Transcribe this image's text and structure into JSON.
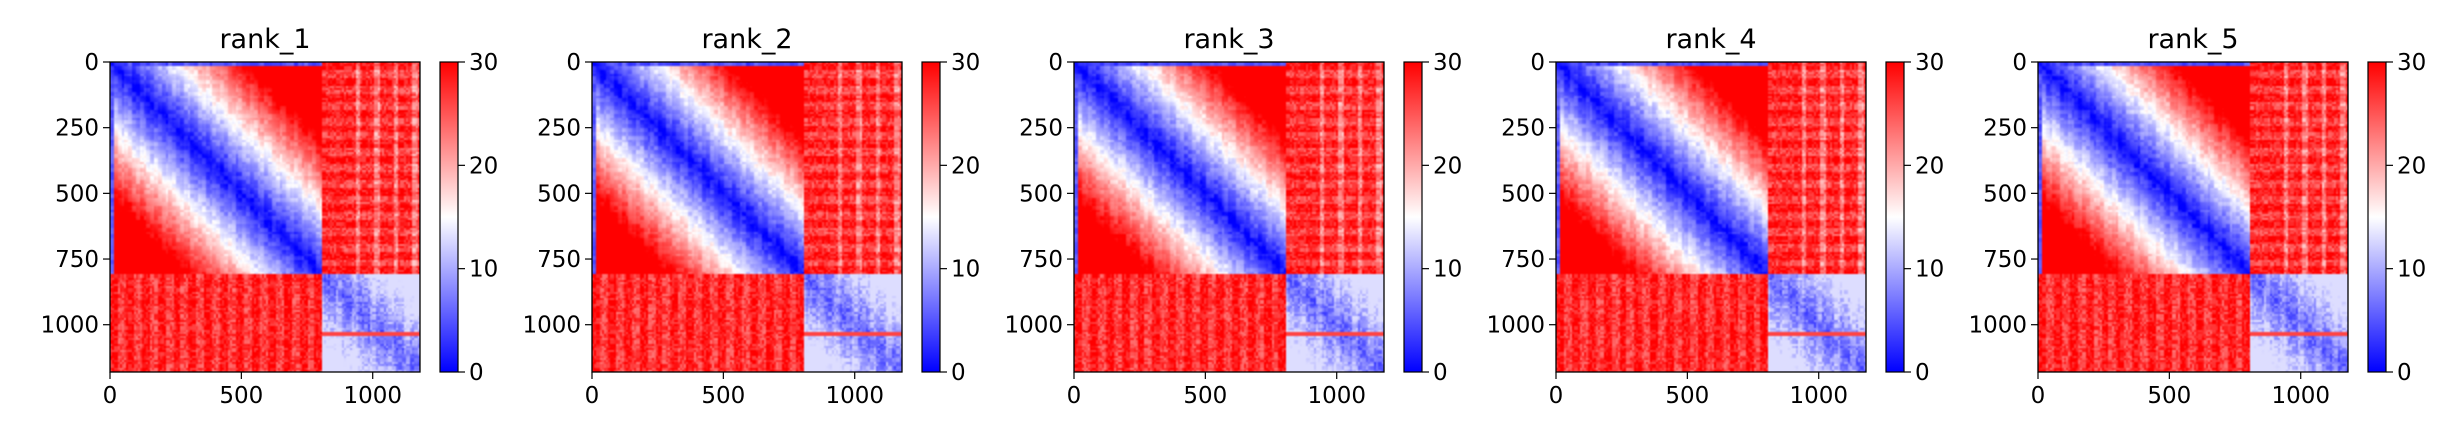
{
  "chart_data": [
    {
      "type": "heatmap",
      "title": "rank_1",
      "xlim": [
        0,
        1180
      ],
      "ylim": [
        1180,
        0
      ],
      "x_ticks": [
        0,
        500,
        1000
      ],
      "y_ticks": [
        0,
        250,
        500,
        750,
        1000
      ],
      "x_tick_labels": [
        "0",
        "500",
        "1000"
      ],
      "y_tick_labels": [
        "0",
        "250",
        "500",
        "750",
        "1000"
      ],
      "colorbar": {
        "min": 0,
        "max": 30,
        "ticks": [
          "0",
          "10",
          "20",
          "30"
        ],
        "colormap": "bwr"
      },
      "block_boundary": 810
    },
    {
      "type": "heatmap",
      "title": "rank_2",
      "xlim": [
        0,
        1180
      ],
      "ylim": [
        1180,
        0
      ],
      "x_ticks": [
        0,
        500,
        1000
      ],
      "y_ticks": [
        0,
        250,
        500,
        750,
        1000
      ],
      "x_tick_labels": [
        "0",
        "500",
        "1000"
      ],
      "y_tick_labels": [
        "0",
        "250",
        "500",
        "750",
        "1000"
      ],
      "colorbar": {
        "min": 0,
        "max": 30,
        "ticks": [
          "0",
          "10",
          "20",
          "30"
        ],
        "colormap": "bwr"
      },
      "block_boundary": 810
    },
    {
      "type": "heatmap",
      "title": "rank_3",
      "xlim": [
        0,
        1180
      ],
      "ylim": [
        1180,
        0
      ],
      "x_ticks": [
        0,
        500,
        1000
      ],
      "y_ticks": [
        0,
        250,
        500,
        750,
        1000
      ],
      "x_tick_labels": [
        "0",
        "500",
        "1000"
      ],
      "y_tick_labels": [
        "0",
        "250",
        "500",
        "750",
        "1000"
      ],
      "colorbar": {
        "min": 0,
        "max": 30,
        "ticks": [
          "0",
          "10",
          "20",
          "30"
        ],
        "colormap": "bwr"
      },
      "block_boundary": 810
    },
    {
      "type": "heatmap",
      "title": "rank_4",
      "xlim": [
        0,
        1180
      ],
      "ylim": [
        1180,
        0
      ],
      "x_ticks": [
        0,
        500,
        1000
      ],
      "y_ticks": [
        0,
        250,
        500,
        750,
        1000
      ],
      "x_tick_labels": [
        "0",
        "500",
        "1000"
      ],
      "y_tick_labels": [
        "0",
        "250",
        "500",
        "750",
        "1000"
      ],
      "colorbar": {
        "min": 0,
        "max": 30,
        "ticks": [
          "0",
          "10",
          "20",
          "30"
        ],
        "colormap": "bwr"
      },
      "block_boundary": 810
    },
    {
      "type": "heatmap",
      "title": "rank_5",
      "xlim": [
        0,
        1180
      ],
      "ylim": [
        1180,
        0
      ],
      "x_ticks": [
        0,
        500,
        1000
      ],
      "y_ticks": [
        0,
        250,
        500,
        750,
        1000
      ],
      "x_tick_labels": [
        "0",
        "500",
        "1000"
      ],
      "y_tick_labels": [
        "0",
        "250",
        "500",
        "750",
        "1000"
      ],
      "colorbar": {
        "min": 0,
        "max": 30,
        "ticks": [
          "0",
          "10",
          "20",
          "30"
        ],
        "colormap": "bwr"
      },
      "block_boundary": 810
    }
  ]
}
